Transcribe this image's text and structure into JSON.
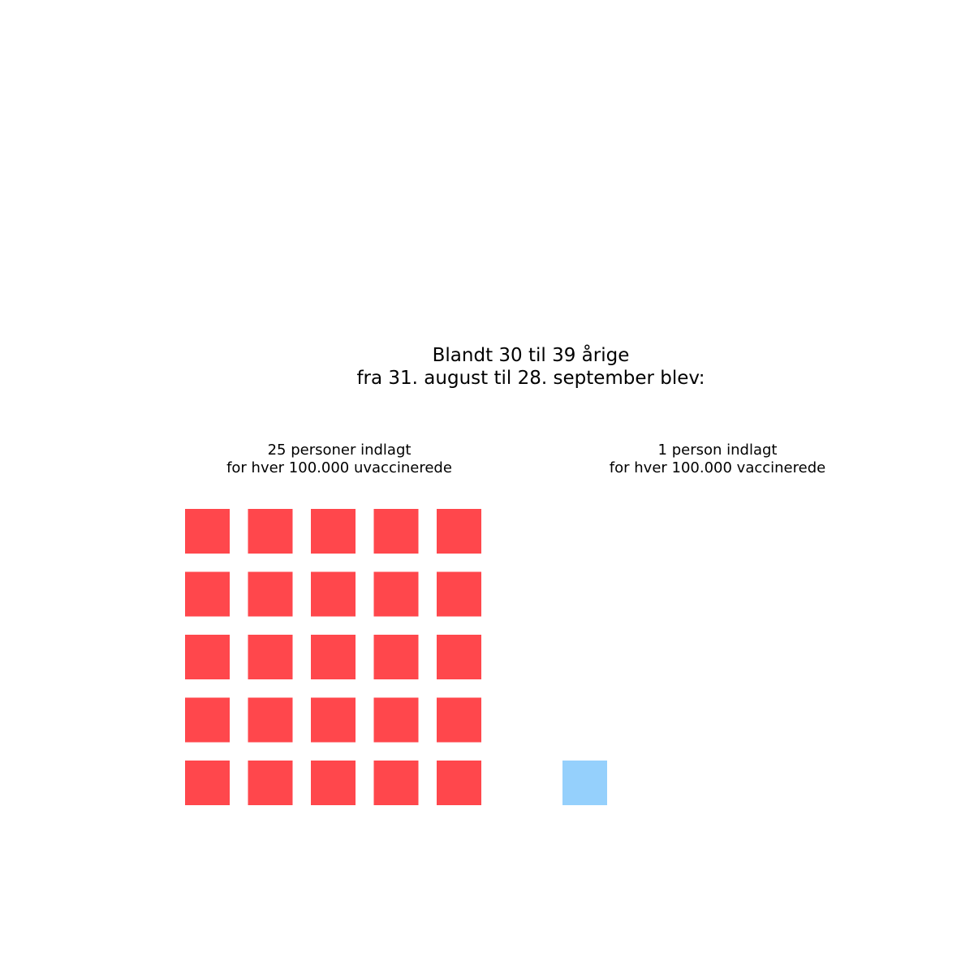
{
  "title": {
    "line1": "Blandt 30 til 39 årige",
    "line2": "fra 31. august til 28. september blev:"
  },
  "chart_data": {
    "type": "waffle",
    "unit": "1 square = 1 person indlagt per 100.000",
    "groups": [
      {
        "key": "unvaccinated",
        "count": 25,
        "color": "#ff474c",
        "label_line1": "25 personer indlagt",
        "label_line2": "for hver 100.000 uvaccinerede"
      },
      {
        "key": "vaccinated",
        "count": 1,
        "color": "#95d0fc",
        "label_line1": "1 person indlagt",
        "label_line2": "for hver 100.000 vaccinerede"
      }
    ]
  }
}
